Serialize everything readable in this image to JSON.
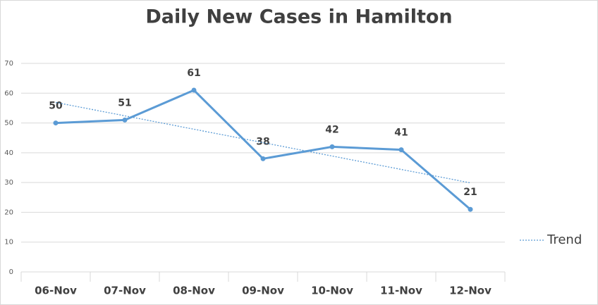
{
  "chart_data": {
    "type": "line",
    "title": "Daily New Cases in Hamilton",
    "categories": [
      "06-Nov",
      "07-Nov",
      "08-Nov",
      "09-Nov",
      "10-Nov",
      "11-Nov",
      "12-Nov"
    ],
    "series": [
      {
        "color": "#5b9bd5",
        "values": [
          50,
          51,
          61,
          38,
          42,
          41,
          21
        ],
        "data_labels": true,
        "style": "solid"
      },
      {
        "name": "Trend",
        "color": "#5b9bd5",
        "values": [
          56.9,
          52.4,
          47.9,
          43.4,
          38.9,
          34.4,
          29.9
        ],
        "data_labels": false,
        "style": "dotted"
      }
    ],
    "ylim": [
      0,
      70
    ],
    "yticks": [
      0,
      10,
      20,
      30,
      40,
      50,
      60,
      70
    ],
    "grid": true,
    "legend": "right"
  }
}
